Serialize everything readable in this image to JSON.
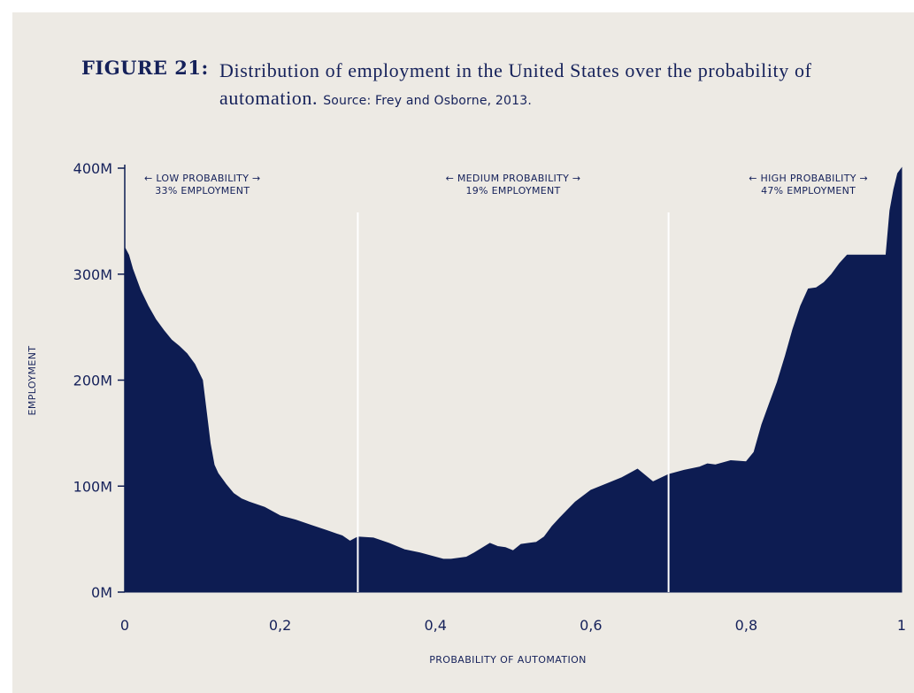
{
  "figure": {
    "label": "FIGURE 21:",
    "title": "Distribution of employment in the United States over the probability of automation.",
    "source": "Source: Frey and Osborne, 2013."
  },
  "colors": {
    "background": "#edeae4",
    "area": "#0d1c52",
    "text": "#15215a",
    "divider": "#ffffff"
  },
  "chart_data": {
    "type": "area",
    "title": "Distribution of employment in the United States over the probability of automation.",
    "xlabel": "PROBABILITY OF AUTOMATION",
    "ylabel": "EMPLOYMENT",
    "xlim": [
      0,
      1
    ],
    "ylim": [
      0,
      400
    ],
    "y_unit": "M",
    "x_ticks": [
      0,
      0.2,
      0.4,
      0.6,
      0.8,
      1
    ],
    "x_tick_labels": [
      "0",
      "0,2",
      "0,4",
      "0,6",
      "0,8",
      "1"
    ],
    "y_ticks": [
      0,
      100,
      200,
      300,
      400
    ],
    "y_tick_labels": [
      "0M",
      "100M",
      "200M",
      "300M",
      "400M"
    ],
    "grid": false,
    "dividers": [
      0.3,
      0.7
    ],
    "bands": [
      {
        "x_center": 0.1,
        "line1": "← LOW PROBABILITY →",
        "line2": "33% EMPLOYMENT"
      },
      {
        "x_center": 0.5,
        "line1": "← MEDIUM PROBABILITY →",
        "line2": "19% EMPLOYMENT"
      },
      {
        "x_center": 0.88,
        "line1": "← HIGH PROBABILITY →",
        "line2": "47% EMPLOYMENT"
      }
    ],
    "series": [
      {
        "x": [
          0,
          0.005,
          0.01,
          0.02,
          0.03,
          0.04,
          0.05,
          0.06,
          0.07,
          0.08,
          0.09,
          0.1,
          0.105,
          0.11,
          0.115,
          0.12,
          0.13,
          0.14,
          0.15,
          0.16,
          0.18,
          0.2,
          0.22,
          0.24,
          0.26,
          0.28,
          0.29,
          0.3,
          0.32,
          0.34,
          0.36,
          0.38,
          0.4,
          0.41,
          0.42,
          0.44,
          0.45,
          0.47,
          0.48,
          0.49,
          0.5,
          0.51,
          0.52,
          0.53,
          0.54,
          0.55,
          0.56,
          0.58,
          0.6,
          0.62,
          0.64,
          0.65,
          0.66,
          0.68,
          0.7,
          0.72,
          0.74,
          0.75,
          0.76,
          0.78,
          0.8,
          0.81,
          0.82,
          0.83,
          0.84,
          0.85,
          0.86,
          0.87,
          0.88,
          0.89,
          0.9,
          0.91,
          0.92,
          0.93,
          0.94,
          0.95,
          0.96,
          0.97,
          0.98,
          0.985,
          0.99,
          0.995,
          1
        ],
        "values": [
          325,
          318,
          305,
          285,
          270,
          257,
          247,
          238,
          232,
          225,
          215,
          200,
          170,
          140,
          120,
          112,
          102,
          93,
          88,
          85,
          80,
          72,
          68,
          63,
          58,
          53,
          48,
          52,
          51,
          46,
          40,
          37,
          33,
          31,
          31,
          33,
          37,
          46,
          43,
          42,
          39,
          45,
          46,
          47,
          52,
          62,
          70,
          85,
          96,
          102,
          108,
          112,
          116,
          104,
          111,
          115,
          118,
          121,
          120,
          124,
          123,
          132,
          158,
          178,
          198,
          222,
          248,
          270,
          286,
          287,
          292,
          300,
          310,
          318,
          318,
          318,
          318,
          318,
          318,
          360,
          380,
          395,
          400
        ]
      }
    ]
  }
}
